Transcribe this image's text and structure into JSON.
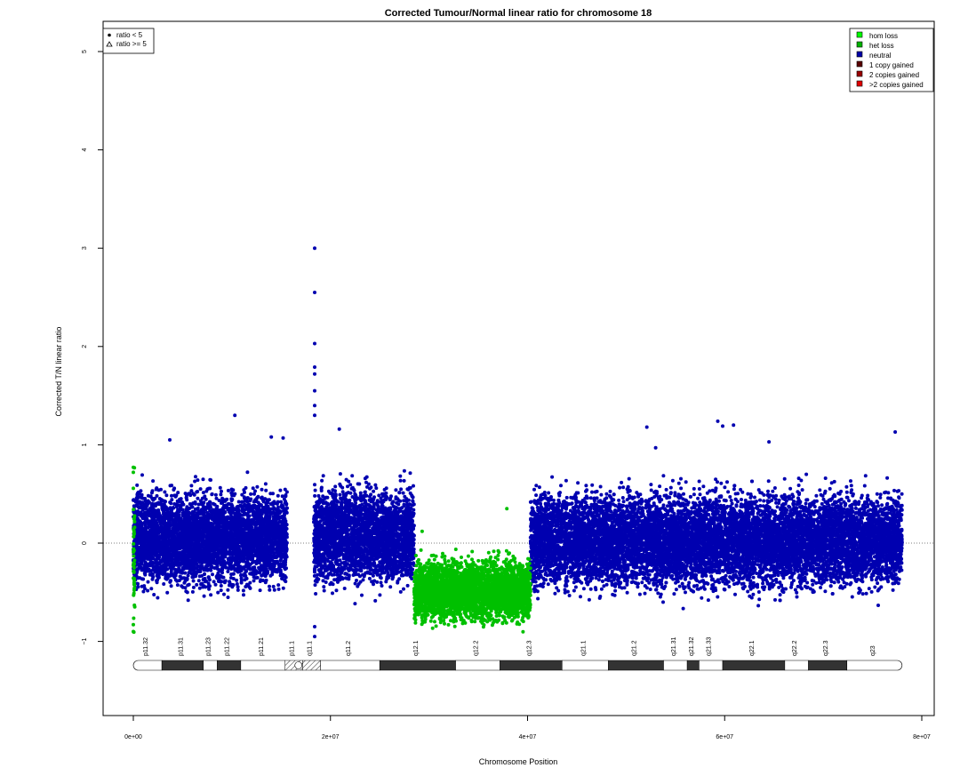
{
  "chart_data": {
    "type": "scatter",
    "title": "Corrected Tumour/Normal linear ratio for chromosome  18",
    "xlabel": "Chromosome Position",
    "ylabel": "Corrected T/N linear ratio",
    "xlim": [
      0,
      80000000
    ],
    "ylim": [
      -1.5,
      5
    ],
    "x_ticks": [
      0,
      20000000,
      40000000,
      60000000,
      80000000
    ],
    "x_tick_labels": [
      "0e+00",
      "2e+07",
      "4e+07",
      "6e+07",
      "8e+07"
    ],
    "y_ticks": [
      -1,
      0,
      1,
      2,
      3,
      4,
      5
    ],
    "y_tick_labels": [
      "−1",
      "0",
      "1",
      "2",
      "3",
      "4",
      "5"
    ],
    "reference_line_y": 0,
    "shape_legend": {
      "position": "top-left",
      "entries": [
        {
          "label": "ratio < 5",
          "shape": "filled-circle"
        },
        {
          "label": "ratio >= 5",
          "shape": "open-triangle"
        }
      ]
    },
    "legend": {
      "position": "top-right",
      "entries": [
        {
          "label": "hom loss",
          "color": "#00ff00"
        },
        {
          "label": "het loss",
          "color": "#00b300"
        },
        {
          "label": "neutral",
          "color": "#0000a8"
        },
        {
          "label": "1 copy gained",
          "color": "#5a0000"
        },
        {
          "label": "2 copies gained",
          "color": "#9a0000"
        },
        {
          "label": ">2 copies gained",
          "color": "#e00000"
        }
      ]
    },
    "series": [
      {
        "name": "neutral",
        "color": "#0000b0",
        "segments": [
          {
            "x_start": 0,
            "x_end": 15600000,
            "mean": 0.05,
            "spread": 0.22
          },
          {
            "x_start": 18300000,
            "x_end": 28500000,
            "mean": 0.08,
            "spread": 0.22
          },
          {
            "x_start": 40300000,
            "x_end": 78000000,
            "mean": 0.03,
            "spread": 0.22
          }
        ],
        "outliers": [
          [
            18400000,
            3.0
          ],
          [
            18400000,
            2.55
          ],
          [
            18400000,
            2.03
          ],
          [
            18400000,
            1.79
          ],
          [
            18400000,
            1.72
          ],
          [
            18400000,
            1.55
          ],
          [
            18400000,
            1.4
          ],
          [
            18400000,
            1.3
          ],
          [
            18400000,
            -0.85
          ],
          [
            18400000,
            -0.95
          ],
          [
            10300000,
            1.3
          ],
          [
            20900000,
            1.16
          ],
          [
            3700000,
            1.05
          ],
          [
            14000000,
            1.08
          ],
          [
            15200000,
            1.07
          ],
          [
            59300000,
            1.24
          ],
          [
            59800000,
            1.19
          ],
          [
            60900000,
            1.2
          ],
          [
            52100000,
            1.18
          ],
          [
            77300000,
            1.13
          ],
          [
            53000000,
            0.97
          ],
          [
            64500000,
            1.03
          ]
        ]
      },
      {
        "name": "het loss",
        "color": "#00c000",
        "segments": [
          {
            "x_start": 28500000,
            "x_end": 40300000,
            "mean": -0.48,
            "spread": 0.14
          },
          {
            "x_start": 0,
            "x_end": 150000,
            "mean": -0.3,
            "spread": 0.35
          }
        ],
        "outliers": [
          [
            37900000,
            0.35
          ],
          [
            29300000,
            0.12
          ],
          [
            0,
            0.77
          ],
          [
            0,
            0.72
          ],
          [
            0,
            -0.9
          ],
          [
            0,
            -0.83
          ]
        ]
      }
    ],
    "ideogram": {
      "bands": [
        {
          "name": "p11.32",
          "start": 0,
          "end": 2900000,
          "stain": "gneg"
        },
        {
          "name": "p11.31",
          "start": 2900000,
          "end": 7100000,
          "stain": "gpos"
        },
        {
          "name": "p11.23",
          "start": 7100000,
          "end": 8500000,
          "stain": "gneg"
        },
        {
          "name": "p11.22",
          "start": 8500000,
          "end": 10900000,
          "stain": "gpos"
        },
        {
          "name": "p11.21",
          "start": 10900000,
          "end": 15400000,
          "stain": "gneg"
        },
        {
          "name": "p11.1",
          "start": 15400000,
          "end": 17200000,
          "stain": "acen"
        },
        {
          "name": "q11.1",
          "start": 17200000,
          "end": 19000000,
          "stain": "gvar"
        },
        {
          "name": "q11.2",
          "start": 19000000,
          "end": 25000000,
          "stain": "gneg"
        },
        {
          "name": "q12.1",
          "start": 25000000,
          "end": 32700000,
          "stain": "gpos"
        },
        {
          "name": "q12.2",
          "start": 32700000,
          "end": 37200000,
          "stain": "gneg"
        },
        {
          "name": "q12.3",
          "start": 37200000,
          "end": 43500000,
          "stain": "gpos"
        },
        {
          "name": "q21.1",
          "start": 43500000,
          "end": 48200000,
          "stain": "gneg"
        },
        {
          "name": "q21.2",
          "start": 48200000,
          "end": 53800000,
          "stain": "gpos"
        },
        {
          "name": "q21.31",
          "start": 53800000,
          "end": 56200000,
          "stain": "gneg"
        },
        {
          "name": "q21.32",
          "start": 56200000,
          "end": 57400000,
          "stain": "gpos"
        },
        {
          "name": "q21.33",
          "start": 57400000,
          "end": 59800000,
          "stain": "gneg"
        },
        {
          "name": "q22.1",
          "start": 59800000,
          "end": 66100000,
          "stain": "gpos"
        },
        {
          "name": "q22.2",
          "start": 66100000,
          "end": 68500000,
          "stain": "gneg"
        },
        {
          "name": "q22.3",
          "start": 68500000,
          "end": 72400000,
          "stain": "gpos"
        },
        {
          "name": "q23",
          "start": 72400000,
          "end": 78000000,
          "stain": "gneg"
        }
      ]
    }
  }
}
